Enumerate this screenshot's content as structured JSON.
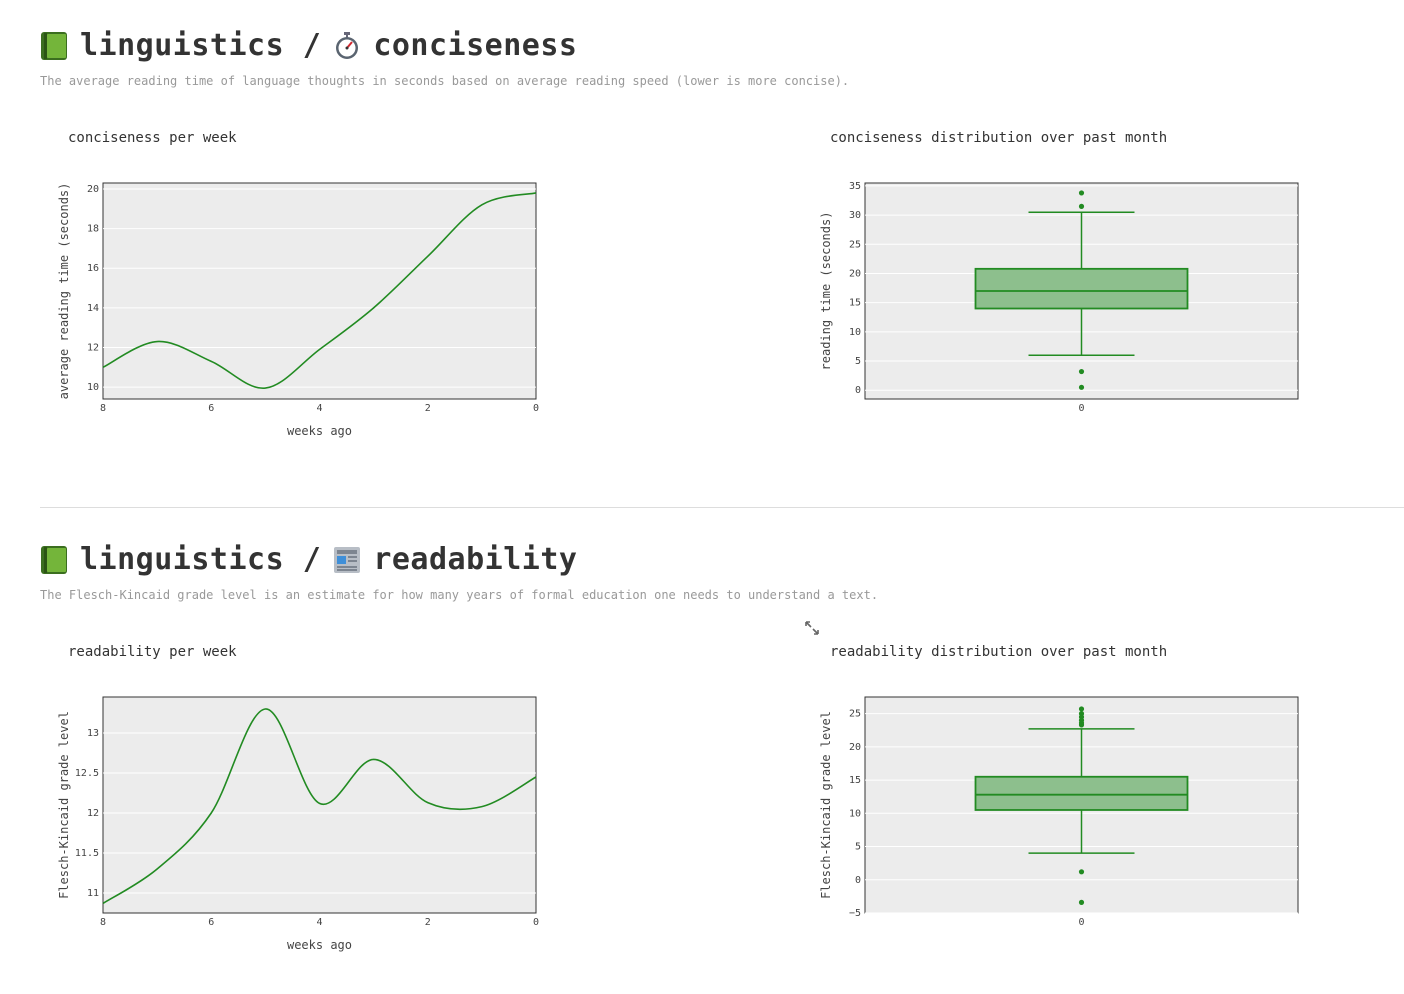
{
  "sections": [
    {
      "prefix": "linguistics /",
      "name": "conciseness",
      "book_icon": "green-book-icon",
      "metric_icon": "stopwatch-icon",
      "description": "The average reading time of language thoughts in seconds based on average reading speed (lower is more concise).",
      "line_title": "conciseness per week",
      "box_title": "conciseness distribution over past month"
    },
    {
      "prefix": "linguistics /",
      "name": "readability",
      "book_icon": "green-book-icon",
      "metric_icon": "newspaper-icon",
      "description": "The Flesch-Kincaid grade level is an estimate for how many years of formal education one needs to understand a text.",
      "line_title": "readability per week",
      "box_title": "readability distribution over past month"
    }
  ],
  "colors": {
    "line": "#228b22",
    "plot_bg": "#ececec",
    "box_fill": "#8dbf8d"
  },
  "chart_data": [
    {
      "type": "line",
      "title": "conciseness per week",
      "xlabel": "weeks ago",
      "ylabel": "average reading time (seconds)",
      "x": [
        8,
        7,
        6,
        5,
        4,
        3,
        2,
        1,
        0
      ],
      "y": [
        11.0,
        12.3,
        11.3,
        9.95,
        11.9,
        14.0,
        16.6,
        19.2,
        19.8
      ],
      "xlim": [
        8,
        0
      ],
      "ylim": [
        9.4,
        20.3
      ],
      "xticks": [
        8,
        6,
        4,
        2,
        0
      ],
      "yticks": [
        10,
        12,
        14,
        16,
        18,
        20
      ],
      "ytick_labels": [
        "10",
        "12",
        "14",
        "16",
        "18",
        "20"
      ]
    },
    {
      "type": "box",
      "title": "conciseness distribution over past month",
      "xlabel": "",
      "ylabel": "reading time (seconds)",
      "category": "0",
      "lower_fence": 6,
      "q1": 14,
      "median": 17,
      "q3": 20.8,
      "upper_fence": 30.5,
      "outliers": [
        33.8,
        31.5,
        3.2,
        0.5
      ],
      "ylim": [
        -1.5,
        35.5
      ],
      "yticks": [
        0,
        5,
        10,
        15,
        20,
        25,
        30,
        35
      ],
      "ytick_labels": [
        "0",
        "5",
        "10",
        "15",
        "20",
        "25",
        "30",
        "35"
      ]
    },
    {
      "type": "line",
      "title": "readability per week",
      "xlabel": "weeks ago",
      "ylabel": "Flesch-Kincaid grade level",
      "x": [
        8,
        7,
        6,
        5,
        4,
        3,
        2,
        1,
        0
      ],
      "y": [
        10.87,
        11.3,
        12.0,
        13.3,
        12.12,
        12.67,
        12.13,
        12.08,
        12.45
      ],
      "xlim": [
        8,
        0
      ],
      "ylim": [
        10.75,
        13.45
      ],
      "xticks": [
        8,
        6,
        4,
        2,
        0
      ],
      "yticks": [
        11,
        11.5,
        12,
        12.5,
        13
      ],
      "ytick_labels": [
        "11",
        "11.5",
        "12",
        "12.5",
        "13"
      ]
    },
    {
      "type": "box",
      "title": "readability distribution over past month",
      "xlabel": "",
      "ylabel": "Flesch-Kincaid grade level",
      "category": "0",
      "lower_fence": 4,
      "q1": 10.5,
      "median": 12.8,
      "q3": 15.5,
      "upper_fence": 22.7,
      "outliers": [
        25.7,
        25,
        24.5,
        24,
        23.6,
        23.3,
        1.2,
        -3.4
      ],
      "ylim": [
        -5,
        27.5
      ],
      "yticks": [
        -5,
        0,
        5,
        10,
        15,
        20,
        25
      ],
      "ytick_labels": [
        "−5",
        "0",
        "5",
        "10",
        "15",
        "20",
        "25"
      ]
    }
  ]
}
